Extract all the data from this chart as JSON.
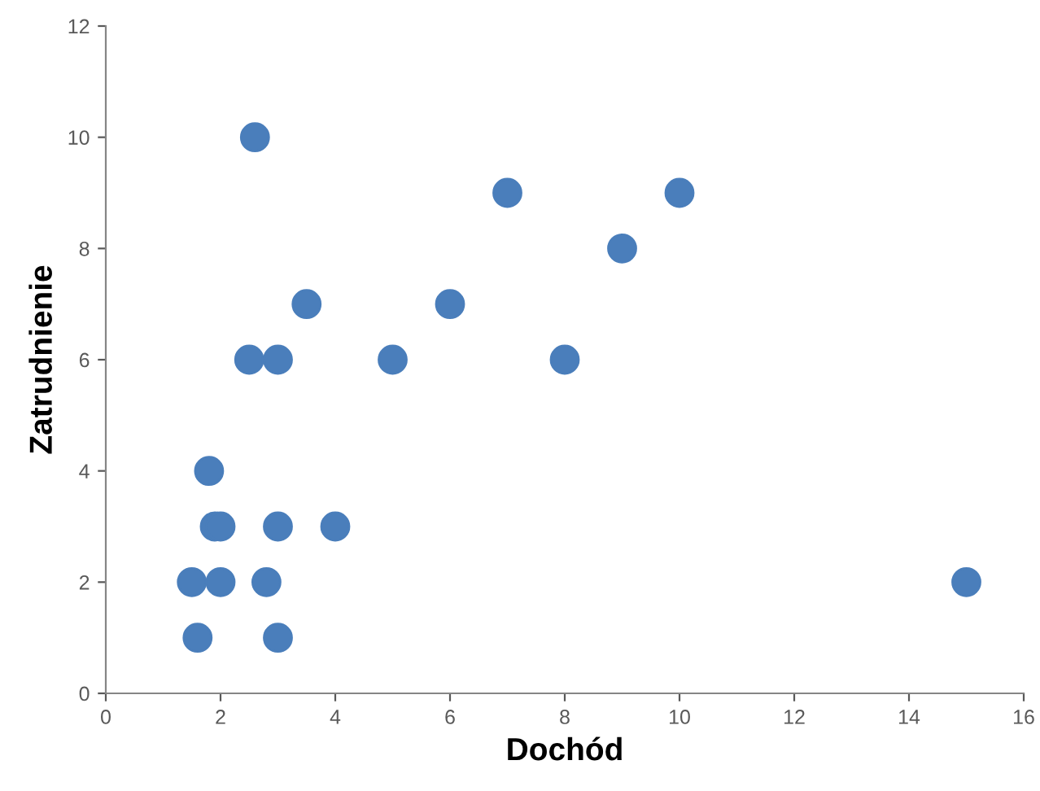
{
  "chart_data": {
    "type": "scatter",
    "xlabel": "Dochód",
    "ylabel": "Zatrudnienie",
    "x": [
      2.6,
      7,
      10,
      9,
      3.5,
      6,
      2.5,
      3,
      5,
      8,
      1.8,
      1.9,
      2,
      3,
      4,
      1.5,
      2,
      2.8,
      15,
      1.6,
      3
    ],
    "series": [
      {
        "color": "#4a7ebb",
        "values": [
          10,
          9,
          9,
          8,
          7,
          7,
          6,
          6,
          6,
          6,
          4,
          3,
          3,
          3,
          3,
          2,
          2,
          2,
          2,
          1,
          1
        ]
      }
    ],
    "xlim": [
      0,
      16
    ],
    "xticks": [
      0,
      2,
      4,
      6,
      8,
      10,
      12,
      14,
      16
    ],
    "ylim": [
      0,
      12
    ],
    "yticks": [
      0,
      2,
      4,
      6,
      8,
      10,
      12
    ],
    "marker": "circle",
    "grid": false,
    "legend": false
  }
}
